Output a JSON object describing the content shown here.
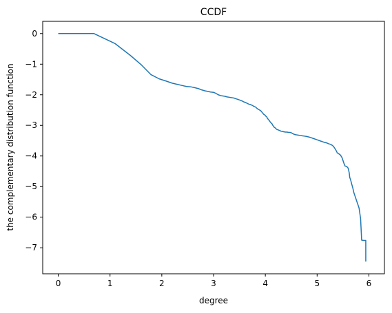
{
  "chart_data": {
    "type": "line",
    "title": "CCDF",
    "xlabel": "degree",
    "ylabel": "the complementary distribution function",
    "xlim": [
      -0.3,
      6.3
    ],
    "ylim": [
      -7.85,
      0.4
    ],
    "xticks": [
      0,
      1,
      2,
      3,
      4,
      5,
      6
    ],
    "xtick_labels": [
      "0",
      "1",
      "2",
      "3",
      "4",
      "5",
      "6"
    ],
    "yticks": [
      0,
      -1,
      -2,
      -3,
      -4,
      -5,
      -6,
      -7
    ],
    "ytick_labels": [
      "0",
      "−1",
      "−2",
      "−3",
      "−4",
      "−5",
      "−6",
      "−7"
    ],
    "grid": false,
    "series": [
      {
        "color": "#1f77b4",
        "points": [
          [
            0,
            0
          ],
          [
            0.69,
            0
          ],
          [
            1.1,
            -0.33
          ],
          [
            1.39,
            -0.71
          ],
          [
            1.61,
            -1.03
          ],
          [
            1.79,
            -1.34
          ],
          [
            1.95,
            -1.48
          ],
          [
            2.08,
            -1.55
          ],
          [
            2.2,
            -1.62
          ],
          [
            2.3,
            -1.66
          ],
          [
            2.4,
            -1.7
          ],
          [
            2.48,
            -1.73
          ],
          [
            2.56,
            -1.74
          ],
          [
            2.64,
            -1.77
          ],
          [
            2.71,
            -1.8
          ],
          [
            2.77,
            -1.84
          ],
          [
            2.83,
            -1.87
          ],
          [
            2.89,
            -1.89
          ],
          [
            2.94,
            -1.91
          ],
          [
            3.0,
            -1.92
          ],
          [
            3.04,
            -1.95
          ],
          [
            3.09,
            -2.0
          ],
          [
            3.14,
            -2.03
          ],
          [
            3.18,
            -2.04
          ],
          [
            3.22,
            -2.05
          ],
          [
            3.26,
            -2.07
          ],
          [
            3.3,
            -2.08
          ],
          [
            3.33,
            -2.09
          ],
          [
            3.37,
            -2.1
          ],
          [
            3.4,
            -2.11
          ],
          [
            3.43,
            -2.13
          ],
          [
            3.47,
            -2.15
          ],
          [
            3.5,
            -2.17
          ],
          [
            3.53,
            -2.19
          ],
          [
            3.56,
            -2.21
          ],
          [
            3.58,
            -2.23
          ],
          [
            3.61,
            -2.25
          ],
          [
            3.64,
            -2.27
          ],
          [
            3.66,
            -2.29
          ],
          [
            3.69,
            -2.31
          ],
          [
            3.71,
            -2.32
          ],
          [
            3.74,
            -2.34
          ],
          [
            3.76,
            -2.36
          ],
          [
            3.78,
            -2.38
          ],
          [
            3.81,
            -2.4
          ],
          [
            3.83,
            -2.43
          ],
          [
            3.85,
            -2.46
          ],
          [
            3.87,
            -2.48
          ],
          [
            3.89,
            -2.5
          ],
          [
            3.91,
            -2.52
          ],
          [
            3.93,
            -2.56
          ],
          [
            3.95,
            -2.6
          ],
          [
            3.97,
            -2.64
          ],
          [
            3.99,
            -2.66
          ],
          [
            4.01,
            -2.7
          ],
          [
            4.03,
            -2.73
          ],
          [
            4.04,
            -2.77
          ],
          [
            4.06,
            -2.81
          ],
          [
            4.08,
            -2.85
          ],
          [
            4.09,
            -2.88
          ],
          [
            4.11,
            -2.92
          ],
          [
            4.13,
            -2.95
          ],
          [
            4.14,
            -2.99
          ],
          [
            4.16,
            -3.03
          ],
          [
            4.17,
            -3.06
          ],
          [
            4.19,
            -3.08
          ],
          [
            4.2,
            -3.1
          ],
          [
            4.22,
            -3.13
          ],
          [
            4.25,
            -3.15
          ],
          [
            4.28,
            -3.17
          ],
          [
            4.3,
            -3.19
          ],
          [
            4.33,
            -3.2
          ],
          [
            4.36,
            -3.21
          ],
          [
            4.39,
            -3.22
          ],
          [
            4.42,
            -3.22
          ],
          [
            4.45,
            -3.23
          ],
          [
            4.48,
            -3.23
          ],
          [
            4.51,
            -3.25
          ],
          [
            4.54,
            -3.28
          ],
          [
            4.57,
            -3.3
          ],
          [
            4.6,
            -3.31
          ],
          [
            4.64,
            -3.32
          ],
          [
            4.68,
            -3.33
          ],
          [
            4.71,
            -3.34
          ],
          [
            4.75,
            -3.35
          ],
          [
            4.79,
            -3.36
          ],
          [
            4.84,
            -3.38
          ],
          [
            4.88,
            -3.4
          ],
          [
            4.93,
            -3.43
          ],
          [
            4.98,
            -3.46
          ],
          [
            5.03,
            -3.49
          ],
          [
            5.08,
            -3.52
          ],
          [
            5.13,
            -3.55
          ],
          [
            5.18,
            -3.57
          ],
          [
            5.22,
            -3.6
          ],
          [
            5.26,
            -3.62
          ],
          [
            5.3,
            -3.66
          ],
          [
            5.33,
            -3.72
          ],
          [
            5.36,
            -3.8
          ],
          [
            5.39,
            -3.9
          ],
          [
            5.42,
            -3.93
          ],
          [
            5.45,
            -3.97
          ],
          [
            5.48,
            -4.05
          ],
          [
            5.5,
            -4.15
          ],
          [
            5.52,
            -4.25
          ],
          [
            5.54,
            -4.33
          ],
          [
            5.57,
            -4.34
          ],
          [
            5.6,
            -4.4
          ],
          [
            5.62,
            -4.55
          ],
          [
            5.63,
            -4.7
          ],
          [
            5.65,
            -4.8
          ],
          [
            5.67,
            -4.93
          ],
          [
            5.69,
            -5.05
          ],
          [
            5.71,
            -5.2
          ],
          [
            5.73,
            -5.3
          ],
          [
            5.75,
            -5.4
          ],
          [
            5.77,
            -5.5
          ],
          [
            5.79,
            -5.6
          ],
          [
            5.81,
            -5.7
          ],
          [
            5.84,
            -6.05
          ],
          [
            5.86,
            -6.75
          ],
          [
            5.9,
            -6.76
          ],
          [
            5.94,
            -6.76
          ],
          [
            5.94,
            -7.45
          ]
        ]
      }
    ]
  }
}
